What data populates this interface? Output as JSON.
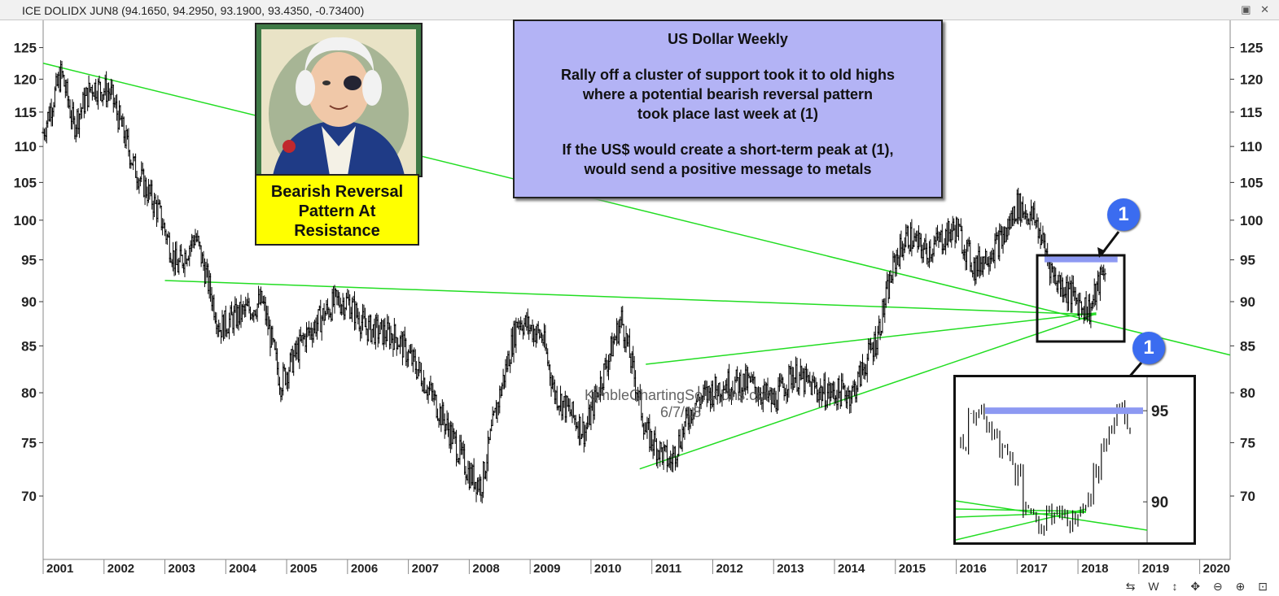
{
  "header": {
    "symbol": "ICE DOLIDX JUN8",
    "ohlc": "(94.1650, 94.2950, 93.1900, 93.4350, -0.73400)"
  },
  "info_box": {
    "title": "US Dollar Weekly",
    "line1": "Rally off a cluster of support took it to old highs",
    "line2": "where a potential bearish reversal pattern",
    "line3": "took place last week at (1)",
    "line4": "If the US$ would create a short-term peak at (1),",
    "line5": "would send a positive message to metals"
  },
  "yellow_box": {
    "line1": "Bearish Reversal",
    "line2": "Pattern At",
    "line3": "Resistance"
  },
  "watermark": {
    "site": "KimbleChartingSolutions.com",
    "date": "6/7/18"
  },
  "badge_label": "1",
  "colors": {
    "price": "#000000",
    "trendline": "#22dd22",
    "resistance": "#8d99f2",
    "info_bg": "#b3b3f5",
    "callout_bg": "#ffff00",
    "badge": "#3b6cf0"
  },
  "chart_data": {
    "type": "ohlc",
    "title": "US Dollar Weekly",
    "y_scale": "log",
    "ylim": [
      66,
      128
    ],
    "y_ticks": [
      70,
      75,
      80,
      85,
      90,
      95,
      100,
      105,
      110,
      115,
      120,
      125
    ],
    "x_range": [
      2001.0,
      2020.5
    ],
    "x_ticks": [
      "2001",
      "2002",
      "2003",
      "2004",
      "2005",
      "2006",
      "2007",
      "2008",
      "2009",
      "2010",
      "2011",
      "2012",
      "2013",
      "2014",
      "2015",
      "2016",
      "2017",
      "2018",
      "2019",
      "2020"
    ],
    "grid": false,
    "series": [
      {
        "x": [
          2001.0,
          2001.3,
          2001.5,
          2001.8,
          2002.1,
          2002.5,
          2002.9,
          2003.2,
          2003.5,
          2003.9,
          2004.1,
          2004.6,
          2004.9,
          2005.3,
          2005.8,
          2006.0,
          2006.3,
          2006.8,
          2007.2,
          2007.6,
          2008.0,
          2008.2,
          2008.4,
          2008.8,
          2009.2,
          2009.4,
          2009.9,
          2010.1,
          2010.5,
          2010.9,
          2011.3,
          2011.7,
          2012.2,
          2012.6,
          2013.0,
          2013.3,
          2013.8,
          2014.3,
          2014.7,
          2015.0,
          2015.2,
          2015.5,
          2016.0,
          2016.3,
          2016.8,
          2017.0,
          2017.3,
          2017.6,
          2018.0,
          2018.2,
          2018.45
        ],
        "close": [
          112,
          121,
          113,
          119,
          118,
          107,
          101,
          94,
          98,
          87,
          88,
          90,
          81,
          86,
          90,
          90,
          87,
          86,
          82,
          77,
          72,
          71,
          77,
          88,
          86,
          80,
          76,
          80,
          88,
          76,
          73,
          79,
          81,
          81,
          79,
          82,
          80,
          80,
          86,
          95,
          98,
          96,
          99,
          94,
          98,
          102,
          100,
          93,
          90,
          89,
          94.4
        ]
      }
    ],
    "trendlines": [
      {
        "from": [
          2001.0,
          122.5
        ],
        "to": [
          2020.5,
          84.0
        ]
      },
      {
        "from": [
          2003.0,
          92.5
        ],
        "to": [
          2018.3,
          88.5
        ]
      },
      {
        "from": [
          2010.9,
          83.0
        ],
        "to": [
          2018.3,
          88.7
        ]
      },
      {
        "from": [
          2010.8,
          72.5
        ],
        "to": [
          2018.3,
          88.6
        ]
      }
    ],
    "resistance": {
      "level": 95.0,
      "from": 2017.45,
      "to": 2018.65
    },
    "annotation": "1",
    "inset": {
      "ylim": [
        88.0,
        96.3
      ],
      "y_ticks": [
        90,
        95
      ],
      "resistance": 95.0
    }
  }
}
